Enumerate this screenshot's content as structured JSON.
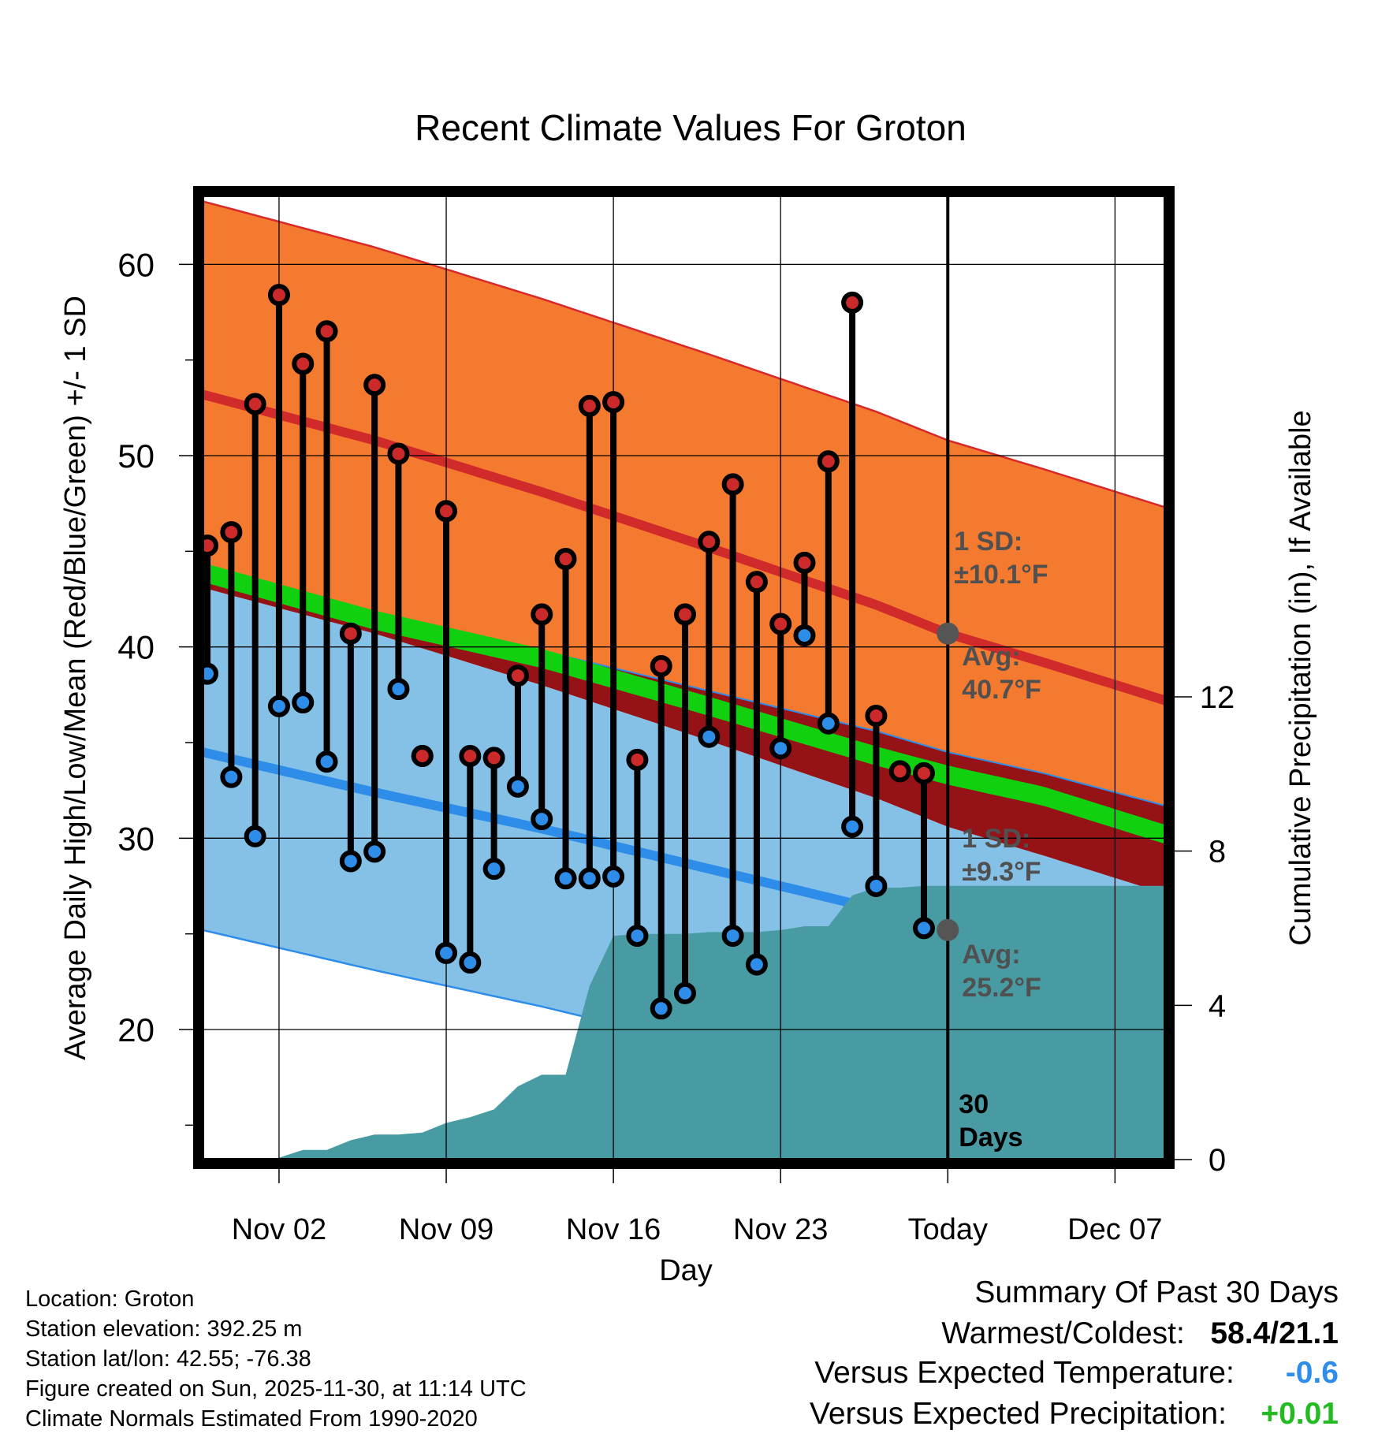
{
  "chart_data": {
    "type": "line",
    "title": "Recent Climate Values For Groton",
    "xlabel": "Day",
    "ylabel": "Average Daily High/Low/Mean (Red/Blue/Green) +/- 1 SD",
    "y2label": "Cumulative Precipitation (in), If Available",
    "xlim": [
      -2.2,
      38.1
    ],
    "ylim": [
      13.2,
      63.6
    ],
    "y2lim": [
      0,
      25
    ],
    "y_ticks": [
      20,
      30,
      40,
      50,
      60
    ],
    "y_tick_labels": [
      "20",
      "30",
      "40",
      "50",
      "60"
    ],
    "y2_ticks": [
      0,
      4,
      8,
      12
    ],
    "y2_tick_labels": [
      "0",
      "4",
      "8",
      "12"
    ],
    "x_ticks": [
      1,
      8,
      15,
      22,
      29,
      36
    ],
    "x_tick_labels": [
      "Nov 02",
      "Nov 09",
      "Nov 16",
      "Nov 23",
      "Today",
      "Dec 07"
    ],
    "today_index": 29,
    "today_label": "Today",
    "days_label": "30 Days",
    "normals": {
      "x": [
        -2.2,
        5,
        12,
        19,
        26,
        29,
        33,
        38.1
      ],
      "high_mean": [
        53.2,
        50.8,
        48.1,
        45.2,
        42.2,
        40.7,
        39.2,
        37.2
      ],
      "high_sd": 10.1,
      "low_mean": [
        34.5,
        32.4,
        30.5,
        28.4,
        26.3,
        25.2,
        24.1,
        22.4
      ],
      "low_sd": 9.3,
      "mean_mean": [
        43.9,
        41.4,
        39.4,
        36.9,
        34.3,
        33.3,
        32.2,
        30.2
      ],
      "mean_sd_half": 0.5
    },
    "series": [
      {
        "name": "Daily High",
        "color": "#cc2a2a",
        "values": [
          45.3,
          46.0,
          52.7,
          58.4,
          54.8,
          56.5,
          40.7,
          53.7,
          50.1,
          34.3,
          47.1,
          34.3,
          34.2,
          38.5,
          41.7,
          44.6,
          52.6,
          52.8,
          34.1,
          39.0,
          41.7,
          45.5,
          48.5,
          43.4,
          41.2,
          44.4,
          49.7,
          58.0,
          36.4,
          33.5,
          33.4
        ]
      },
      {
        "name": "Daily Low",
        "color": "#2d8de8",
        "values": [
          38.6,
          33.2,
          30.1,
          36.9,
          37.1,
          34.0,
          28.8,
          29.3,
          37.8,
          34.3,
          24.0,
          23.5,
          28.4,
          32.7,
          31.0,
          27.9,
          27.9,
          28.0,
          24.9,
          21.1,
          21.9,
          35.3,
          24.9,
          23.4,
          34.7,
          40.6,
          36.0,
          30.6,
          27.5,
          25.3
        ]
      }
    ],
    "high_x": [
      -2,
      -1,
      0,
      1,
      2,
      3,
      4,
      5,
      6,
      7,
      8,
      9,
      10,
      11,
      12,
      13,
      14,
      15,
      16,
      17,
      18,
      19,
      20,
      21,
      22,
      23,
      24,
      25,
      26,
      27,
      28
    ],
    "low_x": [
      -2,
      -1,
      0,
      1,
      2,
      3,
      4,
      5,
      6,
      7,
      8,
      9,
      10,
      11,
      12,
      13,
      14,
      15,
      16,
      17,
      18,
      19,
      20,
      21,
      22,
      23,
      24,
      25,
      26,
      28
    ],
    "precip": {
      "x": [
        -2.2,
        0,
        1,
        2,
        3,
        4,
        5,
        6,
        7,
        8,
        9,
        10,
        11,
        12,
        13,
        14,
        15,
        16,
        17,
        18,
        19,
        20,
        21,
        22,
        23,
        24,
        25,
        26,
        27,
        28,
        29
      ],
      "values": [
        0.0,
        0.0,
        0.05,
        0.25,
        0.25,
        0.5,
        0.65,
        0.65,
        0.7,
        0.95,
        1.1,
        1.3,
        1.9,
        2.2,
        2.2,
        4.5,
        5.8,
        5.85,
        5.85,
        5.85,
        5.9,
        5.9,
        5.9,
        5.95,
        6.05,
        6.05,
        6.85,
        7.05,
        7.05,
        7.1,
        7.1
      ]
    },
    "annotations": {
      "high_sd_title": "1 SD:",
      "high_sd_value": "±10.1°F",
      "high_avg_title": "Avg:",
      "high_avg_value": "40.7°F",
      "low_sd_title": "1 SD:",
      "low_sd_value": "±9.3°F",
      "low_avg_title": "Avg:",
      "low_avg_value": "25.2°F"
    }
  },
  "info": {
    "location": "Location: Groton",
    "elevation": "Station elevation: 392.25 m",
    "latlon": "Station lat/lon: 42.55; -76.38",
    "created": "Figure created on Sun, 2025-11-30, at 11:14 UTC",
    "normals": "Climate Normals Estimated From 1990-2020"
  },
  "summary": {
    "title": "Summary Of Past 30 Days",
    "warmest_label": "Warmest/Coldest:",
    "warmest_value": "58.4/21.1",
    "temp_label": "Versus Expected Temperature:",
    "temp_value": "-0.6",
    "temp_color": "#2d8de8",
    "precip_label": "Versus Expected Precipitation:",
    "precip_value": "+0.01",
    "precip_color": "#22bb22"
  }
}
